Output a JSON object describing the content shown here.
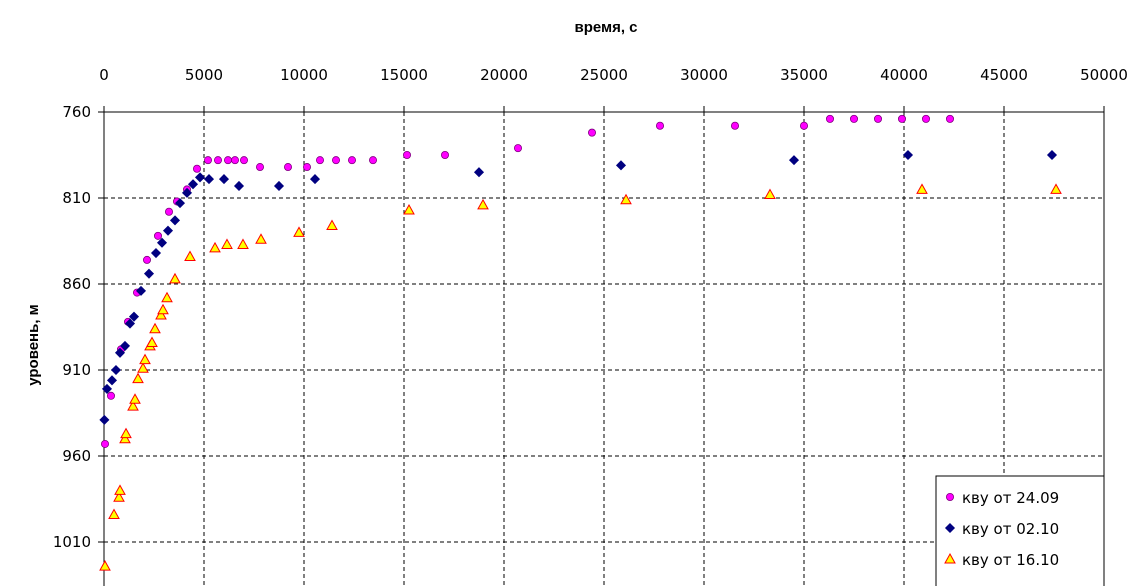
{
  "chart_data": {
    "type": "scatter",
    "title": "",
    "xlabel": "время, с",
    "ylabel": "уровень, м",
    "xlim": [
      0,
      50000
    ],
    "ylim": [
      760,
      1020
    ],
    "y_inverted": true,
    "x_axis_position": "top",
    "x_ticks": [
      "0",
      "5000",
      "10000",
      "15000",
      "20000",
      "25000",
      "30000",
      "35000",
      "40000",
      "45000",
      "50000"
    ],
    "y_ticks": [
      "760",
      "810",
      "860",
      "910",
      "960",
      "1010"
    ],
    "grid": true,
    "legend_position": "bottom-right",
    "series": [
      {
        "name": "кву от 24.09",
        "marker": "circle",
        "color": "#ff00ff",
        "edge": "#800080",
        "points": [
          [
            50,
            953
          ],
          [
            350,
            925
          ],
          [
            850,
            898
          ],
          [
            1200,
            882
          ],
          [
            1650,
            865
          ],
          [
            2150,
            846
          ],
          [
            2700,
            832
          ],
          [
            3250,
            818
          ],
          [
            3650,
            812
          ],
          [
            4150,
            805
          ],
          [
            4650,
            793
          ],
          [
            5200,
            788
          ],
          [
            5700,
            788
          ],
          [
            6200,
            788
          ],
          [
            6550,
            788
          ],
          [
            7000,
            788
          ],
          [
            7800,
            792
          ],
          [
            9200,
            792
          ],
          [
            10150,
            792
          ],
          [
            10800,
            788
          ],
          [
            11600,
            788
          ],
          [
            12400,
            788
          ],
          [
            13450,
            788
          ],
          [
            15150,
            785
          ],
          [
            17050,
            785
          ],
          [
            20700,
            781
          ],
          [
            24400,
            772
          ],
          [
            27800,
            768
          ],
          [
            31550,
            768
          ],
          [
            35000,
            768
          ],
          [
            36300,
            764
          ],
          [
            37500,
            764
          ],
          [
            38700,
            764
          ],
          [
            39900,
            764
          ],
          [
            41100,
            764
          ],
          [
            42300,
            764
          ]
        ]
      },
      {
        "name": "кву от 02.10",
        "marker": "diamond",
        "color": "#000080",
        "edge": "#000080",
        "points": [
          [
            20,
            939
          ],
          [
            150,
            921
          ],
          [
            400,
            916
          ],
          [
            600,
            910
          ],
          [
            800,
            900
          ],
          [
            1050,
            896
          ],
          [
            1300,
            883
          ],
          [
            1500,
            879
          ],
          [
            1850,
            864
          ],
          [
            2250,
            854
          ],
          [
            2600,
            842
          ],
          [
            2900,
            836
          ],
          [
            3200,
            829
          ],
          [
            3550,
            823
          ],
          [
            3800,
            813
          ],
          [
            4150,
            807
          ],
          [
            4450,
            802
          ],
          [
            4800,
            798
          ],
          [
            5250,
            799
          ],
          [
            6000,
            799
          ],
          [
            6750,
            803
          ],
          [
            8750,
            803
          ],
          [
            10550,
            799
          ],
          [
            18750,
            795
          ],
          [
            25850,
            791
          ],
          [
            34500,
            788
          ],
          [
            40200,
            785
          ],
          [
            47400,
            785
          ]
        ]
      },
      {
        "name": "кву от 16.10",
        "marker": "triangle",
        "color": "#ffff00",
        "edge": "#ff0000",
        "points": [
          [
            50,
            1024
          ],
          [
            500,
            994
          ],
          [
            750,
            984
          ],
          [
            800,
            980
          ],
          [
            1050,
            950
          ],
          [
            1100,
            947
          ],
          [
            1450,
            931
          ],
          [
            1550,
            927
          ],
          [
            1700,
            915
          ],
          [
            1950,
            909
          ],
          [
            2050,
            904
          ],
          [
            2300,
            896
          ],
          [
            2400,
            894
          ],
          [
            2550,
            886
          ],
          [
            2850,
            878
          ],
          [
            2950,
            875
          ],
          [
            3150,
            868
          ],
          [
            3550,
            857
          ],
          [
            4300,
            844
          ],
          [
            5550,
            839
          ],
          [
            6150,
            837
          ],
          [
            6950,
            837
          ],
          [
            7850,
            834
          ],
          [
            9750,
            830
          ],
          [
            11400,
            826
          ],
          [
            15250,
            817
          ],
          [
            18950,
            814
          ],
          [
            26100,
            811
          ],
          [
            33300,
            808
          ],
          [
            40900,
            805
          ],
          [
            47600,
            805
          ]
        ]
      }
    ]
  }
}
